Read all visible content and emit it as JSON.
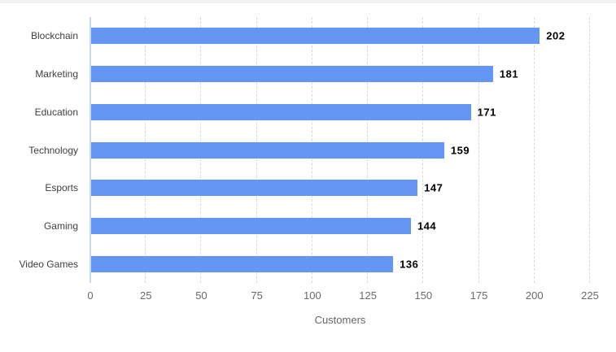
{
  "chart": {
    "bar_color": "#6496f5",
    "axis_line_color": "#ccd6eb",
    "gridline_color": "#d9d9d9",
    "category_label_color": "#3f3f3f",
    "value_label_color": "#000000",
    "tick_label_color": "#68696d",
    "axis_title_color": "#666666",
    "background_color": "#ffffff"
  },
  "chart_data": {
    "type": "bar",
    "orientation": "horizontal",
    "title": "",
    "categories": [
      "Blockchain",
      "Marketing",
      "Education",
      "Technology",
      "Esports",
      "Gaming",
      "Video Games"
    ],
    "values": [
      202,
      181,
      171,
      159,
      147,
      144,
      136
    ],
    "xlabel": "Customers",
    "ylabel": "",
    "xlim": [
      0,
      225
    ],
    "xticks": [
      0,
      25,
      50,
      75,
      100,
      125,
      150,
      175,
      200,
      225
    ],
    "grid": "vertical-dashed",
    "legend": "none",
    "data_labels": true
  }
}
